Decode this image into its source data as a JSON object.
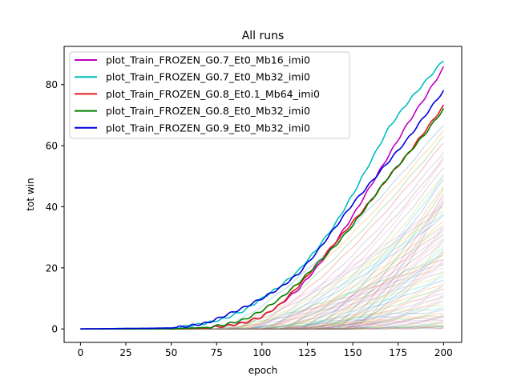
{
  "chart_data": {
    "type": "line",
    "title": "All runs",
    "xlabel": "epoch",
    "ylabel": "tot win",
    "xlim": [
      -9,
      210
    ],
    "ylim": [
      -4.4,
      92.5
    ],
    "xticks": [
      0,
      25,
      50,
      75,
      100,
      125,
      150,
      175,
      200
    ],
    "yticks": [
      0,
      20,
      40,
      60,
      80
    ],
    "legend_position": "top-left",
    "series": [
      {
        "name": "plot_Train_FROZEN_G0.7_Et0_Mb16_imi0",
        "color": "#bf00bf",
        "x": [
          0,
          50,
          70,
          80,
          90,
          100,
          110,
          120,
          130,
          140,
          150,
          160,
          170,
          180,
          190,
          200
        ],
        "y": [
          0,
          0,
          0.5,
          1,
          2,
          4,
          8,
          13,
          20,
          28,
          37,
          47,
          57,
          67,
          76,
          85.5
        ]
      },
      {
        "name": "plot_Train_FROZEN_G0.7_Et0_Mb32_imi0",
        "color": "#00bfbf",
        "x": [
          0,
          50,
          60,
          70,
          80,
          90,
          100,
          110,
          120,
          130,
          140,
          150,
          160,
          170,
          180,
          190,
          200
        ],
        "y": [
          0,
          0.3,
          1,
          2,
          3.5,
          6,
          10,
          14,
          19,
          26,
          34,
          44,
          55,
          66,
          74,
          81,
          88
        ]
      },
      {
        "name": "plot_Train_FROZEN_G0.8_Et0.1_Mb64_imi0",
        "color": "#e31a1c",
        "x": [
          0,
          50,
          70,
          80,
          90,
          100,
          110,
          120,
          130,
          140,
          150,
          160,
          170,
          180,
          190,
          200
        ],
        "y": [
          0,
          0,
          0.3,
          1,
          2,
          4,
          8,
          14,
          21,
          28,
          35,
          42,
          50,
          57,
          65,
          73
        ]
      },
      {
        "name": "plot_Train_FROZEN_G0.8_Et0_Mb32_imi0",
        "color": "#008000",
        "x": [
          0,
          50,
          70,
          80,
          90,
          100,
          110,
          120,
          130,
          140,
          150,
          160,
          170,
          180,
          190,
          200
        ],
        "y": [
          0,
          0,
          0.5,
          1.5,
          3,
          6,
          10,
          15,
          21,
          27,
          34,
          42,
          50,
          57,
          64,
          72
        ]
      },
      {
        "name": "plot_Train_FROZEN_G0.9_Et0_Mb32_imi0",
        "color": "#0000e0",
        "x": [
          0,
          50,
          60,
          70,
          80,
          90,
          100,
          110,
          120,
          130,
          140,
          150,
          160,
          170,
          180,
          190,
          200
        ],
        "y": [
          0,
          0.3,
          1,
          2,
          4.5,
          7,
          10,
          13.5,
          18,
          25,
          33,
          41,
          48,
          55,
          62,
          70,
          78
        ]
      }
    ],
    "background_series": {
      "color_cycle": [
        "#1f77b4",
        "#ff7f0e",
        "#2ca02c",
        "#d62728",
        "#9467bd",
        "#8c564b",
        "#e377c2",
        "#7f7f7f",
        "#bcbd22",
        "#17becf"
      ],
      "final_values": [
        67,
        65,
        63,
        61,
        58,
        56,
        55,
        53,
        51,
        50,
        49,
        47,
        46,
        44,
        43,
        42,
        41,
        40,
        39,
        38,
        37,
        35,
        34,
        33,
        32,
        31,
        30,
        29,
        28,
        27,
        26,
        25,
        24,
        23,
        22,
        21,
        20,
        19,
        18,
        17,
        16,
        15,
        14,
        13,
        12,
        11,
        10,
        9,
        8,
        7,
        6,
        5,
        4.5,
        4,
        3.5,
        3,
        2.5,
        2,
        1.5,
        1.2,
        1,
        0.8,
        0.6,
        0.4,
        0.3
      ],
      "onset_epochs": [
        75,
        80,
        85,
        90,
        95,
        100,
        105,
        110,
        115,
        120,
        125,
        130,
        135,
        140,
        145,
        150
      ]
    }
  }
}
